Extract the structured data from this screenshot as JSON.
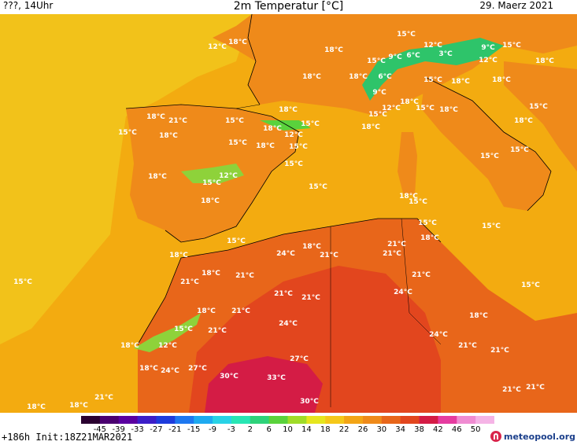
{
  "header": {
    "left": "???, 14Uhr",
    "title": "2m Temperatur [°C]",
    "date": "29. Maerz 2021"
  },
  "colors": {
    "sea": "#f3ab10",
    "atlantic_warm": "#f2c21a",
    "land": "#ef8a1a",
    "land_hot": "#e8661a",
    "desert": "#e2461e",
    "hot_core": "#d41c45",
    "mountain": "#2ec46a",
    "coast": "#000000"
  },
  "map_labels": [
    {
      "text": "18°C",
      "pos": [
        302,
        38
      ]
    },
    {
      "text": "12°C",
      "pos": [
        276,
        44
      ]
    },
    {
      "text": "18°C",
      "pos": [
        424,
        48
      ]
    },
    {
      "text": "15°C",
      "pos": [
        516,
        28
      ]
    },
    {
      "text": "12°C",
      "pos": [
        550,
        42
      ]
    },
    {
      "text": "9°C",
      "pos": [
        620,
        45
      ]
    },
    {
      "text": "15°C",
      "pos": [
        650,
        42
      ]
    },
    {
      "text": "9°C",
      "pos": [
        502,
        57
      ]
    },
    {
      "text": "6°C",
      "pos": [
        525,
        55
      ]
    },
    {
      "text": "3°C",
      "pos": [
        566,
        53
      ]
    },
    {
      "text": "18°C",
      "pos": [
        692,
        62
      ]
    },
    {
      "text": "15°C",
      "pos": [
        478,
        62
      ]
    },
    {
      "text": "12°C",
      "pos": [
        620,
        61
      ]
    },
    {
      "text": "18°C",
      "pos": [
        396,
        82
      ]
    },
    {
      "text": "18°C",
      "pos": [
        455,
        82
      ]
    },
    {
      "text": "6°C",
      "pos": [
        489,
        82
      ]
    },
    {
      "text": "15°C",
      "pos": [
        550,
        86
      ]
    },
    {
      "text": "18°C",
      "pos": [
        585,
        88
      ]
    },
    {
      "text": "18°C",
      "pos": [
        637,
        86
      ]
    },
    {
      "text": "9°C",
      "pos": [
        482,
        102
      ]
    },
    {
      "text": "18°C",
      "pos": [
        520,
        114
      ]
    },
    {
      "text": "15°C",
      "pos": [
        540,
        122
      ]
    },
    {
      "text": "18°C",
      "pos": [
        570,
        124
      ]
    },
    {
      "text": "12°C",
      "pos": [
        497,
        122
      ]
    },
    {
      "text": "15°C",
      "pos": [
        480,
        130
      ]
    },
    {
      "text": "18°C",
      "pos": [
        366,
        124
      ]
    },
    {
      "text": "18°C",
      "pos": [
        198,
        133
      ]
    },
    {
      "text": "21°C",
      "pos": [
        226,
        138
      ]
    },
    {
      "text": "15°C",
      "pos": [
        298,
        138
      ]
    },
    {
      "text": "15°C",
      "pos": [
        394,
        142
      ]
    },
    {
      "text": "18°C",
      "pos": [
        471,
        146
      ]
    },
    {
      "text": "18°C",
      "pos": [
        665,
        138
      ]
    },
    {
      "text": "15°C",
      "pos": [
        684,
        120
      ]
    },
    {
      "text": "15°C",
      "pos": [
        162,
        153
      ]
    },
    {
      "text": "18°C",
      "pos": [
        214,
        157
      ]
    },
    {
      "text": "18°C",
      "pos": [
        346,
        148
      ]
    },
    {
      "text": "12°C",
      "pos": [
        373,
        156
      ]
    },
    {
      "text": "15°C",
      "pos": [
        302,
        166
      ]
    },
    {
      "text": "18°C",
      "pos": [
        337,
        170
      ]
    },
    {
      "text": "15°C",
      "pos": [
        379,
        171
      ]
    },
    {
      "text": "15°C",
      "pos": [
        660,
        175
      ]
    },
    {
      "text": "15°C",
      "pos": [
        622,
        183
      ]
    },
    {
      "text": "15°C",
      "pos": [
        373,
        193
      ]
    },
    {
      "text": "18°C",
      "pos": [
        200,
        209
      ]
    },
    {
      "text": "12°C",
      "pos": [
        290,
        208
      ]
    },
    {
      "text": "15°C",
      "pos": [
        269,
        217
      ]
    },
    {
      "text": "15°C",
      "pos": [
        404,
        222
      ]
    },
    {
      "text": "18°C",
      "pos": [
        519,
        234
      ]
    },
    {
      "text": "15°C",
      "pos": [
        531,
        241
      ]
    },
    {
      "text": "18°C",
      "pos": [
        267,
        240
      ]
    },
    {
      "text": "15°C",
      "pos": [
        543,
        268
      ]
    },
    {
      "text": "15°C",
      "pos": [
        624,
        272
      ]
    },
    {
      "text": "18°C",
      "pos": [
        546,
        287
      ]
    },
    {
      "text": "15°C",
      "pos": [
        300,
        291
      ]
    },
    {
      "text": "21°C",
      "pos": [
        504,
        295
      ]
    },
    {
      "text": "18°C",
      "pos": [
        396,
        298
      ]
    },
    {
      "text": "24°C",
      "pos": [
        363,
        307
      ]
    },
    {
      "text": "21°C",
      "pos": [
        418,
        309
      ]
    },
    {
      "text": "21°C",
      "pos": [
        498,
        307
      ]
    },
    {
      "text": "18°C",
      "pos": [
        227,
        309
      ]
    },
    {
      "text": "18°C",
      "pos": [
        268,
        332
      ]
    },
    {
      "text": "21°C",
      "pos": [
        311,
        335
      ]
    },
    {
      "text": "21°C",
      "pos": [
        535,
        334
      ]
    },
    {
      "text": "15°C",
      "pos": [
        29,
        343
      ]
    },
    {
      "text": "21°C",
      "pos": [
        241,
        343
      ]
    },
    {
      "text": "15°C",
      "pos": [
        674,
        347
      ]
    },
    {
      "text": "24°C",
      "pos": [
        512,
        356
      ]
    },
    {
      "text": "21°C",
      "pos": [
        360,
        358
      ]
    },
    {
      "text": "21°C",
      "pos": [
        395,
        363
      ]
    },
    {
      "text": "18°C",
      "pos": [
        262,
        380
      ]
    },
    {
      "text": "21°C",
      "pos": [
        306,
        380
      ]
    },
    {
      "text": "18°C",
      "pos": [
        608,
        386
      ]
    },
    {
      "text": "24°C",
      "pos": [
        366,
        396
      ]
    },
    {
      "text": "15°C",
      "pos": [
        233,
        403
      ]
    },
    {
      "text": "21°C",
      "pos": [
        276,
        405
      ]
    },
    {
      "text": "24°C",
      "pos": [
        557,
        410
      ]
    },
    {
      "text": "18°C",
      "pos": [
        165,
        424
      ]
    },
    {
      "text": "12°C",
      "pos": [
        213,
        424
      ]
    },
    {
      "text": "21°C",
      "pos": [
        594,
        424
      ]
    },
    {
      "text": "21°C",
      "pos": [
        635,
        430
      ]
    },
    {
      "text": "27°C",
      "pos": [
        380,
        441
      ]
    },
    {
      "text": "18°C",
      "pos": [
        189,
        453
      ]
    },
    {
      "text": "24°C",
      "pos": [
        216,
        456
      ]
    },
    {
      "text": "27°C",
      "pos": [
        251,
        453
      ]
    },
    {
      "text": "30°C",
      "pos": [
        291,
        463
      ]
    },
    {
      "text": "33°C",
      "pos": [
        351,
        465
      ]
    },
    {
      "text": "21°C",
      "pos": [
        650,
        480
      ]
    },
    {
      "text": "21°C",
      "pos": [
        680,
        477
      ]
    },
    {
      "text": "21°C",
      "pos": [
        132,
        490
      ]
    },
    {
      "text": "30°C",
      "pos": [
        393,
        495
      ]
    },
    {
      "text": "18°C",
      "pos": [
        46,
        502
      ]
    },
    {
      "text": "18°C",
      "pos": [
        100,
        500
      ]
    }
  ],
  "colorbar": {
    "ticks": [
      "-45",
      "-39",
      "-33",
      "-27",
      "-21",
      "-15",
      "-9",
      "-3",
      "2",
      "6",
      "10",
      "14",
      "18",
      "22",
      "26",
      "30",
      "34",
      "38",
      "42",
      "46",
      "50"
    ],
    "colors": [
      "#2a0030",
      "#4a0070",
      "#5a00a0",
      "#3c1ec8",
      "#1e3cdc",
      "#1e78f0",
      "#1eaaf0",
      "#28d2e6",
      "#28e6b4",
      "#2ed27a",
      "#5ad23c",
      "#a0dc28",
      "#e6e61e",
      "#f5c81a",
      "#f3a516",
      "#ef8a1a",
      "#e8661a",
      "#e2461e",
      "#d41c45",
      "#e63ca0",
      "#f08cd2",
      "#f5b4e6"
    ]
  },
  "footer": {
    "init": "+186h Init:18Z21MAR2021",
    "logo": "meteopool.org"
  }
}
